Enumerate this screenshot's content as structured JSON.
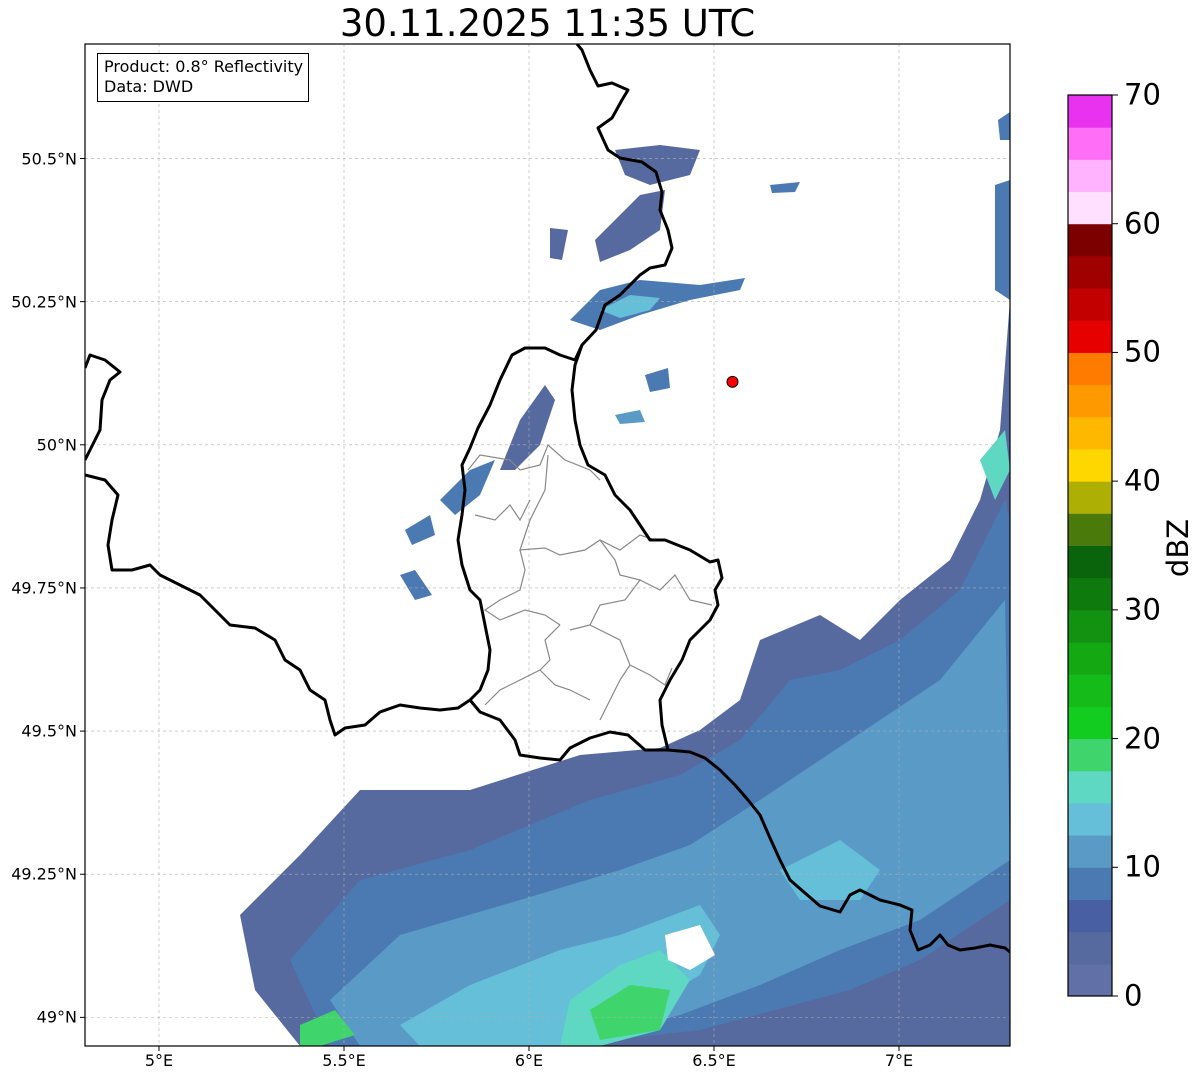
{
  "title": "30.11.2025 11:35 UTC",
  "info_box": {
    "product": "Product: 0.8° Reflectivity",
    "data": "Data: DWD"
  },
  "latitude_ticks": [
    {
      "value": 50.5,
      "label": "50.5°N"
    },
    {
      "value": 50.25,
      "label": "50.25°N"
    },
    {
      "value": 50.0,
      "label": "50°N"
    },
    {
      "value": 49.75,
      "label": "49.75°N"
    },
    {
      "value": 49.5,
      "label": "49.5°N"
    },
    {
      "value": 49.25,
      "label": "49.25°N"
    },
    {
      "value": 49.0,
      "label": "49°N"
    }
  ],
  "longitude_ticks": [
    {
      "value": 5.0,
      "label": "5°E"
    },
    {
      "value": 5.5,
      "label": "5.5°E"
    },
    {
      "value": 6.0,
      "label": "6°E"
    },
    {
      "value": 6.5,
      "label": "6.5°E"
    },
    {
      "value": 7.0,
      "label": "7°E"
    }
  ],
  "map_extent": {
    "lon": [
      4.8,
      7.3
    ],
    "lat": [
      48.95,
      50.7
    ]
  },
  "radar_site": {
    "lon": 6.55,
    "lat": 50.11,
    "color": "#ff0000"
  },
  "colorbar": {
    "label": "dBZ",
    "min": 0,
    "max": 70,
    "step": 2.5,
    "tick_labels": [
      "0",
      "10",
      "20",
      "30",
      "40",
      "50",
      "60",
      "70"
    ],
    "colors": [
      "#6170a6",
      "#566aa0",
      "#485fa3",
      "#4b79b2",
      "#5a9ac7",
      "#65bfd9",
      "#5ed7c3",
      "#3fd46c",
      "#12cc1f",
      "#14bb19",
      "#14a812",
      "#139211",
      "#0e7a0e",
      "#0a640b",
      "#4a7a0a",
      "#adaf05",
      "#ffd700",
      "#ffb800",
      "#ff9900",
      "#ff7b00",
      "#e60000",
      "#c20000",
      "#a10000",
      "#7d0000",
      "#ffe0ff",
      "#ffb3ff",
      "#ff6ef7",
      "#e832f0"
    ]
  },
  "colors": {
    "border": "#000000",
    "district_lines": "#888888",
    "grid": "#b0b0b0"
  }
}
